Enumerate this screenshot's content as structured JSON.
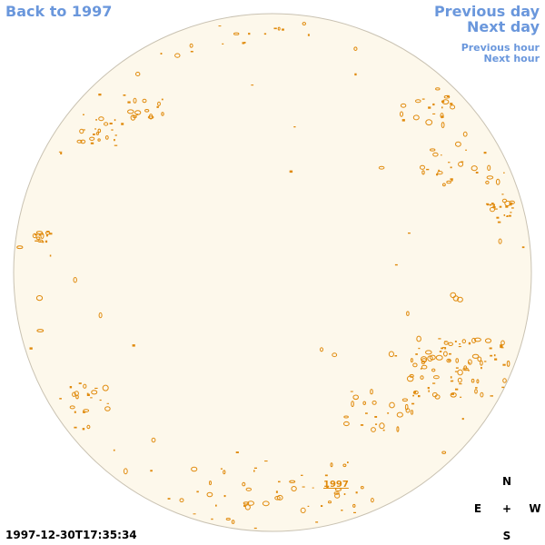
{
  "nav": {
    "back_label": "Back to 1997",
    "prev_day_label": "Previous day",
    "next_day_label": "Next day",
    "prev_hour_label": "Previous hour",
    "next_hour_label": "Next hour"
  },
  "timestamp": "1997-12-30T17:35:34",
  "marker_label": "1997",
  "compass": {
    "north": "N",
    "south": "S",
    "east": "E",
    "west": "W",
    "center": "+"
  },
  "colors": {
    "disk_fill": "#fdf8eb",
    "disk_stroke": "#c9c2b2",
    "feature": "#e08a0c",
    "link": "#6a97dc"
  }
}
